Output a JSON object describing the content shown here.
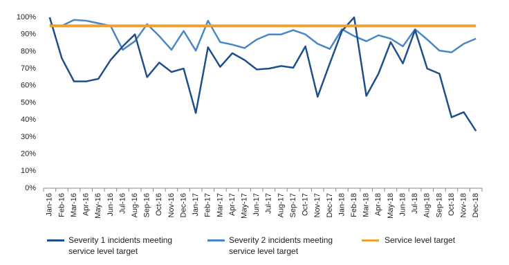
{
  "chart_data": {
    "type": "line",
    "categories": [
      "Jan-16",
      "Feb-16",
      "Mar-16",
      "Apr-16",
      "May-16",
      "Jun-16",
      "Jul-16",
      "Aug-16",
      "Sep-16",
      "Oct-16",
      "Nov-16",
      "Dec-16",
      "Jan-17",
      "Feb-17",
      "Mar-17",
      "Apr-17",
      "May-17",
      "Jun-17",
      "Jul-17",
      "Aug-17",
      "Sep-17",
      "Oct-17",
      "Nov-17",
      "Dec-17",
      "Jan-18",
      "Feb-18",
      "Mar-18",
      "Apr-18",
      "May-18",
      "Jun-18",
      "Jul-18",
      "Aug-18",
      "Sep-18",
      "Oct-18",
      "Nov-18",
      "Dec-18"
    ],
    "series": [
      {
        "name": "Severity 1 incidents meeting service level target",
        "color": "#1f4e8c",
        "values": [
          100,
          76,
          62.5,
          62.5,
          64,
          75,
          83,
          90,
          65,
          73.5,
          68,
          70,
          44,
          82.5,
          71,
          79,
          75,
          69.5,
          70,
          71.5,
          70.5,
          83,
          53.5,
          73,
          92,
          100,
          54,
          67,
          85.5,
          73,
          92.5,
          70,
          67,
          41.5,
          44.5,
          33.5
        ]
      },
      {
        "name": "Severity 2 incidents meeting service level target",
        "color": "#4a86c5",
        "values": [
          95.5,
          95,
          98.5,
          98,
          96.5,
          95,
          81,
          86,
          96,
          89,
          81,
          92,
          80.5,
          98,
          85.5,
          84,
          82,
          87,
          90,
          90,
          92.5,
          90,
          84.5,
          81.5,
          93,
          89,
          86,
          89.5,
          87.5,
          83,
          93,
          87,
          80.5,
          79.5,
          84.5,
          87.5
        ]
      },
      {
        "name": "Service level target",
        "color": "#f0a030",
        "values": [
          95,
          95,
          95,
          95,
          95,
          95,
          95,
          95,
          95,
          95,
          95,
          95,
          95,
          95,
          95,
          95,
          95,
          95,
          95,
          95,
          95,
          95,
          95,
          95,
          95,
          95,
          95,
          95,
          95,
          95,
          95,
          95,
          95,
          95,
          95,
          95
        ]
      }
    ],
    "ylim": [
      0,
      100
    ],
    "yticks": [
      {
        "value": 0,
        "label": "0%"
      },
      {
        "value": 10,
        "label": "10%"
      },
      {
        "value": 20,
        "label": "20%"
      },
      {
        "value": 30,
        "label": "30%"
      },
      {
        "value": 40,
        "label": "40%"
      },
      {
        "value": 50,
        "label": "50%"
      },
      {
        "value": 60,
        "label": "60%"
      },
      {
        "value": 70,
        "label": "70%"
      },
      {
        "value": 80,
        "label": "80%"
      },
      {
        "value": 90,
        "label": "90%"
      },
      {
        "value": 100,
        "label": "100%"
      }
    ],
    "grid": false
  }
}
